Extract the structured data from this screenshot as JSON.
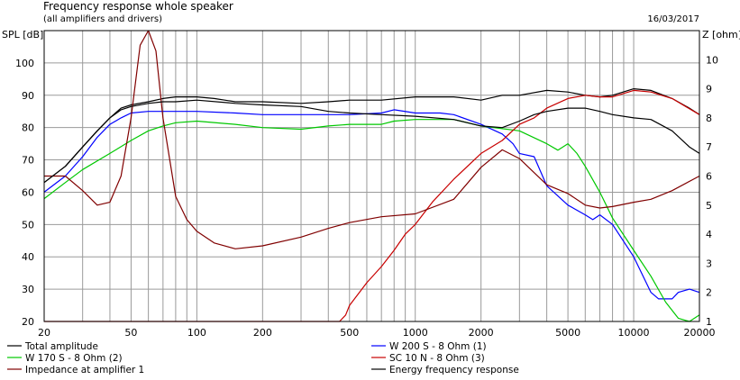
{
  "chart_data": {
    "type": "line",
    "title": "Frequency response whole speaker",
    "subtitle": "(all amplifiers and drivers)",
    "date": "16/03/2017",
    "ylabel": "SPL [dB]",
    "y2label": "Z [ohm]",
    "xscale": "log",
    "xlim": [
      20,
      20000
    ],
    "ylim": [
      20,
      110
    ],
    "y2lim": [
      1,
      11
    ],
    "grid": true,
    "x_ticks": [
      "20",
      "50",
      "100",
      "200",
      "500",
      "1000",
      "2000",
      "5000",
      "10000",
      "20000"
    ],
    "y_ticks": [
      "20",
      "30",
      "40",
      "50",
      "60",
      "70",
      "80",
      "90",
      "100"
    ],
    "y2_ticks": [
      "1",
      "2",
      "3",
      "4",
      "5",
      "6",
      "7",
      "8",
      "9",
      "10"
    ],
    "series": [
      {
        "name": "Total amplitude",
        "axis": "left",
        "color": "#000000",
        "points": [
          [
            20,
            63
          ],
          [
            25,
            68
          ],
          [
            30,
            74
          ],
          [
            35,
            79
          ],
          [
            40,
            83
          ],
          [
            45,
            86
          ],
          [
            50,
            87
          ],
          [
            60,
            88
          ],
          [
            70,
            89
          ],
          [
            80,
            89.5
          ],
          [
            100,
            89.5
          ],
          [
            120,
            89
          ],
          [
            150,
            88
          ],
          [
            200,
            88
          ],
          [
            300,
            87.5
          ],
          [
            400,
            88
          ],
          [
            500,
            88.5
          ],
          [
            700,
            88.5
          ],
          [
            1000,
            89.5
          ],
          [
            1500,
            89.5
          ],
          [
            2000,
            88.5
          ],
          [
            2500,
            90
          ],
          [
            3000,
            90
          ],
          [
            4000,
            91.5
          ],
          [
            5000,
            91
          ],
          [
            6000,
            90
          ],
          [
            7000,
            89.5
          ],
          [
            8000,
            90
          ],
          [
            10000,
            92
          ],
          [
            12000,
            91.5
          ],
          [
            15000,
            89
          ],
          [
            18000,
            86
          ],
          [
            20000,
            84
          ]
        ]
      },
      {
        "name": "W 200 S - 8 Ohm (1)",
        "axis": "left",
        "color": "#0000ff",
        "points": [
          [
            20,
            60
          ],
          [
            25,
            65
          ],
          [
            30,
            71
          ],
          [
            35,
            77
          ],
          [
            40,
            81
          ],
          [
            45,
            83
          ],
          [
            50,
            84.5
          ],
          [
            60,
            85
          ],
          [
            80,
            85
          ],
          [
            100,
            85
          ],
          [
            150,
            84.5
          ],
          [
            200,
            84
          ],
          [
            300,
            84
          ],
          [
            400,
            84
          ],
          [
            500,
            84
          ],
          [
            700,
            84.5
          ],
          [
            800,
            85.5
          ],
          [
            1000,
            84.5
          ],
          [
            1300,
            84.5
          ],
          [
            1500,
            84
          ],
          [
            2000,
            81
          ],
          [
            2500,
            78
          ],
          [
            2800,
            75
          ],
          [
            3000,
            72
          ],
          [
            3500,
            71
          ],
          [
            4000,
            62
          ],
          [
            5000,
            56
          ],
          [
            6000,
            53
          ],
          [
            6500,
            51.5
          ],
          [
            7000,
            53
          ],
          [
            8000,
            50
          ],
          [
            10000,
            40
          ],
          [
            12000,
            29
          ],
          [
            13000,
            27
          ],
          [
            15000,
            27
          ],
          [
            16000,
            29
          ],
          [
            18000,
            30
          ],
          [
            20000,
            29
          ]
        ]
      },
      {
        "name": "W 170 S - 8 Ohm (2)",
        "axis": "left",
        "color": "#00c800",
        "points": [
          [
            20,
            58
          ],
          [
            25,
            63
          ],
          [
            30,
            67
          ],
          [
            40,
            72
          ],
          [
            50,
            76
          ],
          [
            60,
            79
          ],
          [
            70,
            80.5
          ],
          [
            80,
            81.5
          ],
          [
            100,
            82
          ],
          [
            150,
            81
          ],
          [
            200,
            80
          ],
          [
            300,
            79.5
          ],
          [
            400,
            80.5
          ],
          [
            500,
            81
          ],
          [
            700,
            81
          ],
          [
            800,
            82
          ],
          [
            1000,
            82.5
          ],
          [
            1500,
            82.5
          ],
          [
            2000,
            80.5
          ],
          [
            3000,
            79
          ],
          [
            4000,
            75
          ],
          [
            4500,
            73
          ],
          [
            5000,
            75
          ],
          [
            5500,
            72
          ],
          [
            6000,
            68
          ],
          [
            7000,
            60
          ],
          [
            8000,
            52
          ],
          [
            10000,
            42
          ],
          [
            12000,
            34
          ],
          [
            14000,
            26
          ],
          [
            16000,
            21
          ],
          [
            18000,
            20
          ],
          [
            20000,
            22
          ]
        ]
      },
      {
        "name": "SC 10 N - 8 Ohm (3)",
        "axis": "left",
        "color": "#c80000",
        "points": [
          [
            20,
            20
          ],
          [
            100,
            20
          ],
          [
            300,
            20
          ],
          [
            450,
            20
          ],
          [
            480,
            22
          ],
          [
            500,
            25
          ],
          [
            600,
            32
          ],
          [
            700,
            37
          ],
          [
            800,
            42
          ],
          [
            900,
            47
          ],
          [
            1000,
            50
          ],
          [
            1200,
            57
          ],
          [
            1500,
            64
          ],
          [
            2000,
            72
          ],
          [
            2500,
            76
          ],
          [
            3000,
            81
          ],
          [
            3500,
            83
          ],
          [
            4000,
            86
          ],
          [
            5000,
            89
          ],
          [
            6000,
            90
          ],
          [
            7000,
            89.5
          ],
          [
            8000,
            89.5
          ],
          [
            10000,
            91.5
          ],
          [
            12000,
            91
          ],
          [
            15000,
            89
          ],
          [
            20000,
            84
          ]
        ]
      },
      {
        "name": "Impedance at amplifier 1",
        "axis": "right",
        "color": "#800000",
        "points": [
          [
            20,
            6
          ],
          [
            25,
            6
          ],
          [
            30,
            5.5
          ],
          [
            35,
            5
          ],
          [
            40,
            5.1
          ],
          [
            45,
            6
          ],
          [
            50,
            8
          ],
          [
            55,
            10.5
          ],
          [
            60,
            11
          ],
          [
            65,
            10.3
          ],
          [
            70,
            8
          ],
          [
            80,
            5.3
          ],
          [
            90,
            4.5
          ],
          [
            100,
            4.1
          ],
          [
            120,
            3.7
          ],
          [
            150,
            3.5
          ],
          [
            200,
            3.6
          ],
          [
            300,
            3.9
          ],
          [
            400,
            4.2
          ],
          [
            500,
            4.4
          ],
          [
            700,
            4.6
          ],
          [
            1000,
            4.7
          ],
          [
            1500,
            5.2
          ],
          [
            2000,
            6.3
          ],
          [
            2500,
            6.9
          ],
          [
            3000,
            6.6
          ],
          [
            4000,
            5.7
          ],
          [
            5000,
            5.4
          ],
          [
            6000,
            5.0
          ],
          [
            7000,
            4.9
          ],
          [
            8000,
            4.95
          ],
          [
            10000,
            5.1
          ],
          [
            12000,
            5.2
          ],
          [
            15000,
            5.5
          ],
          [
            20000,
            6.0
          ]
        ]
      },
      {
        "name": "Energy frequency response",
        "axis": "left",
        "color": "#000000",
        "points": [
          [
            20,
            63
          ],
          [
            25,
            68
          ],
          [
            30,
            74
          ],
          [
            35,
            79
          ],
          [
            40,
            83
          ],
          [
            45,
            85.5
          ],
          [
            50,
            86.5
          ],
          [
            60,
            87.5
          ],
          [
            70,
            88
          ],
          [
            80,
            88
          ],
          [
            100,
            88.5
          ],
          [
            150,
            87.5
          ],
          [
            200,
            87
          ],
          [
            300,
            86.5
          ],
          [
            400,
            85
          ],
          [
            500,
            84.5
          ],
          [
            700,
            84
          ],
          [
            1000,
            83.5
          ],
          [
            1500,
            82.5
          ],
          [
            2000,
            80.5
          ],
          [
            2500,
            80
          ],
          [
            3000,
            82
          ],
          [
            3500,
            84
          ],
          [
            4000,
            85
          ],
          [
            5000,
            86
          ],
          [
            6000,
            86
          ],
          [
            7000,
            85
          ],
          [
            8000,
            84
          ],
          [
            10000,
            83
          ],
          [
            12000,
            82.5
          ],
          [
            15000,
            79
          ],
          [
            18000,
            74
          ],
          [
            20000,
            72
          ]
        ]
      }
    ]
  }
}
